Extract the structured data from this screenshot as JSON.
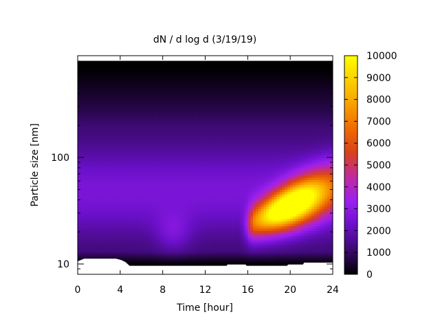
{
  "chart_data": {
    "type": "heatmap",
    "title": "dN / d log d (3/19/19)",
    "xlabel": "Time [hour]",
    "ylabel": "Particle size [nm]",
    "x_ticks": [
      "0",
      "4",
      "8",
      "12",
      "16",
      "20",
      "24"
    ],
    "y_ticks": [
      "10",
      "100"
    ],
    "xlim": [
      0,
      24
    ],
    "ylim": [
      8,
      900
    ],
    "y_scale": "log",
    "colorbar": {
      "ticks": [
        "0",
        "1000",
        "2000",
        "3000",
        "4000",
        "5000",
        "6000",
        "7000",
        "8000",
        "9000",
        "10000"
      ],
      "range": [
        0,
        10000
      ],
      "colormap": [
        "#000000",
        "#3b0a6e",
        "#6a10c8",
        "#9b1ff0",
        "#c02aa0",
        "#d8421c",
        "#f06a00",
        "#f8a000",
        "#fcd000",
        "#ffff00"
      ]
    },
    "grid": false,
    "legend": "colorbar-right",
    "features": [
      {
        "name": "banana-growth-event",
        "time_range": [
          15.5,
          24
        ],
        "size_range": [
          14,
          90
        ],
        "peak_value": 9000,
        "peak_time": 20,
        "peak_size": 40
      },
      {
        "name": "morning-mode",
        "time_range": [
          7,
          11
        ],
        "size_range": [
          12,
          40
        ],
        "peak_value": 3500
      }
    ]
  }
}
